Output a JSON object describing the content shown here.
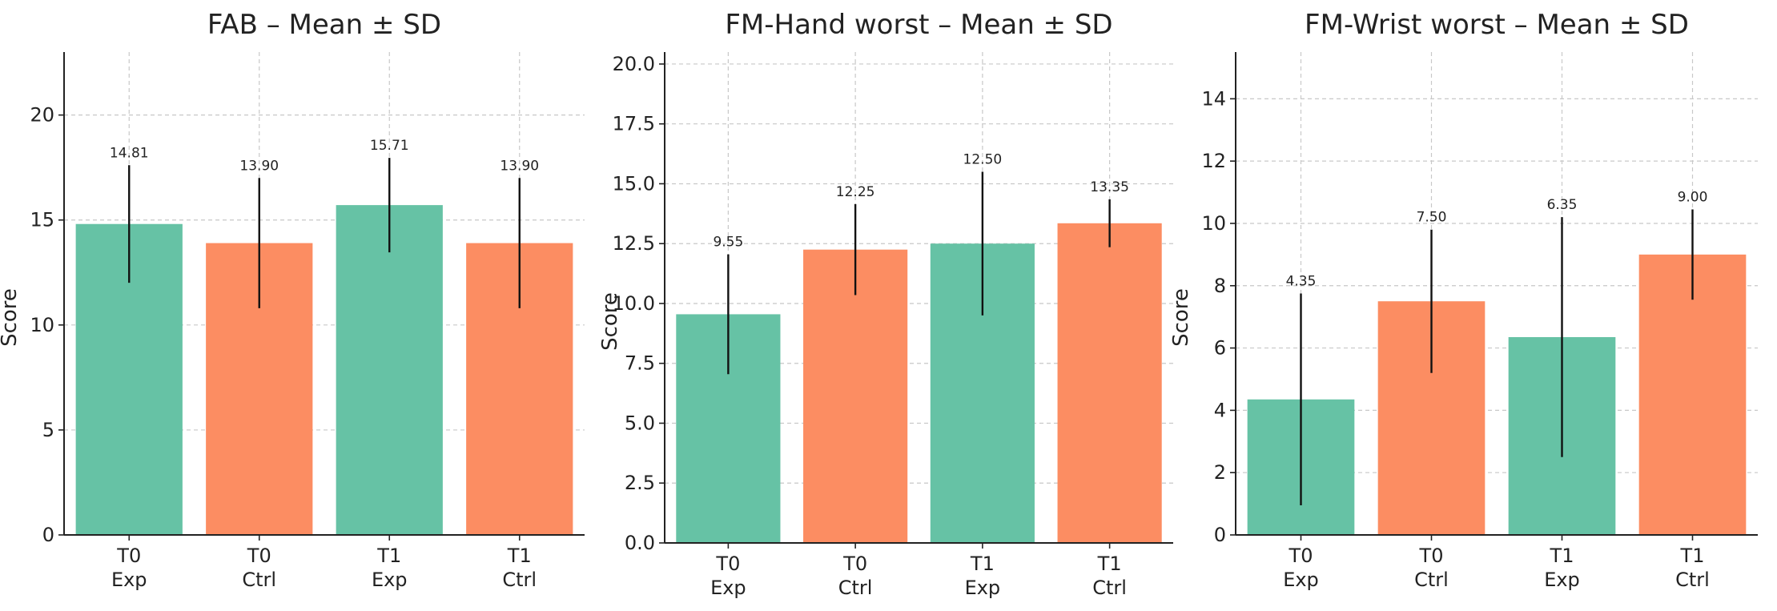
{
  "chart_data": [
    {
      "type": "bar",
      "title": "FAB – Mean ± SD",
      "ylabel": "Score",
      "xlabel": "",
      "categories": [
        [
          "T0",
          "Exp"
        ],
        [
          "T0",
          "Ctrl"
        ],
        [
          "T1",
          "Exp"
        ],
        [
          "T1",
          "Ctrl"
        ]
      ],
      "values": [
        14.81,
        13.9,
        15.71,
        13.9
      ],
      "value_labels": [
        "14.81",
        "13.90",
        "15.71",
        "13.90"
      ],
      "sd": [
        2.8,
        3.1,
        2.25,
        3.1
      ],
      "bar_colors": [
        "#66c2a5",
        "#fc8d62",
        "#66c2a5",
        "#fc8d62"
      ],
      "ylim": [
        0,
        23
      ],
      "yticks": [
        0,
        5,
        10,
        15,
        20
      ],
      "ytick_labels": [
        "0",
        "5",
        "10",
        "15",
        "20"
      ],
      "grid": true
    },
    {
      "type": "bar",
      "title": "FM-Hand worst – Mean ± SD",
      "ylabel": "Score",
      "xlabel": "",
      "categories": [
        [
          "T0",
          "Exp"
        ],
        [
          "T0",
          "Ctrl"
        ],
        [
          "T1",
          "Exp"
        ],
        [
          "T1",
          "Ctrl"
        ]
      ],
      "values": [
        9.55,
        12.25,
        12.5,
        13.35
      ],
      "value_labels": [
        "9.55",
        "12.25",
        "12.50",
        "13.35"
      ],
      "sd": [
        2.5,
        1.9,
        3.0,
        1.0
      ],
      "bar_colors": [
        "#66c2a5",
        "#fc8d62",
        "#66c2a5",
        "#fc8d62"
      ],
      "ylim": [
        0,
        20.5
      ],
      "yticks": [
        0,
        2.5,
        5,
        7.5,
        10,
        12.5,
        15,
        17.5,
        20
      ],
      "ytick_labels": [
        "0.0",
        "2.5",
        "5.0",
        "7.5",
        "10.0",
        "12.5",
        "15.0",
        "17.5",
        "20.0"
      ],
      "grid": true
    },
    {
      "type": "bar",
      "title": "FM-Wrist worst – Mean ± SD",
      "ylabel": "Score",
      "xlabel": "",
      "categories": [
        [
          "T0",
          "Exp"
        ],
        [
          "T0",
          "Ctrl"
        ],
        [
          "T1",
          "Exp"
        ],
        [
          "T1",
          "Ctrl"
        ]
      ],
      "values": [
        4.35,
        7.5,
        6.35,
        9.0
      ],
      "value_labels": [
        "4.35",
        "7.50",
        "6.35",
        "9.00"
      ],
      "sd": [
        3.4,
        2.3,
        3.85,
        1.45
      ],
      "bar_colors": [
        "#66c2a5",
        "#fc8d62",
        "#66c2a5",
        "#fc8d62"
      ],
      "ylim": [
        0,
        15.5
      ],
      "yticks": [
        0,
        2,
        4,
        6,
        8,
        10,
        12,
        14
      ],
      "ytick_labels": [
        "0",
        "2",
        "4",
        "6",
        "8",
        "10",
        "12",
        "14"
      ],
      "grid": true
    }
  ]
}
